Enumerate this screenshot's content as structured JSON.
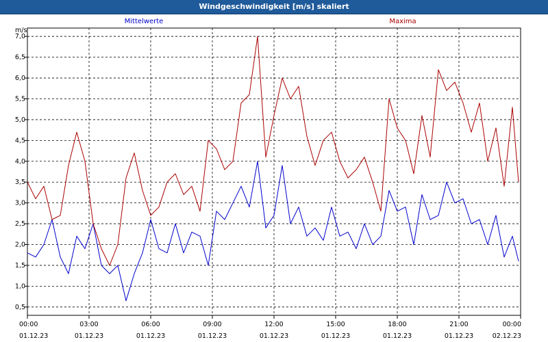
{
  "window": {
    "title": "Windgeschwindigkeit [m/s] skaliert"
  },
  "chart_data": {
    "type": "line",
    "title": "Windgeschwindigkeit [m/s] skaliert",
    "ylabel": "m/s",
    "ylim": [
      0.3,
      7.2
    ],
    "yticks": [
      "0,5",
      "1,0",
      "1,5",
      "2,0",
      "2,5",
      "3,0",
      "3,5",
      "4,0",
      "4,5",
      "5,0",
      "5,5",
      "6,0",
      "6,5",
      "7,0"
    ],
    "xlim": [
      0,
      24
    ],
    "xticks": [
      {
        "time": "00:00",
        "date": "01.12.23"
      },
      {
        "time": "03:00",
        "date": "01.12.23"
      },
      {
        "time": "06:00",
        "date": "01.12.23"
      },
      {
        "time": "09:00",
        "date": "01.12.23"
      },
      {
        "time": "12:00",
        "date": "01.12.23"
      },
      {
        "time": "15:00",
        "date": "01.12.23"
      },
      {
        "time": "18:00",
        "date": "01.12.23"
      },
      {
        "time": "21:00",
        "date": "01.12.23"
      },
      {
        "time": "00:00",
        "date": "02.12.23"
      }
    ],
    "grid": true,
    "series": [
      {
        "name": "Mittelwerte",
        "color": "#0000cc",
        "x": [
          0,
          0.4,
          0.8,
          1.2,
          1.6,
          2.0,
          2.4,
          2.8,
          3.2,
          3.6,
          4.0,
          4.4,
          4.8,
          5.2,
          5.6,
          6.0,
          6.4,
          6.8,
          7.2,
          7.6,
          8.0,
          8.4,
          8.8,
          9.2,
          9.6,
          10.0,
          10.4,
          10.8,
          11.2,
          11.6,
          12.0,
          12.4,
          12.8,
          13.2,
          13.6,
          14.0,
          14.4,
          14.8,
          15.2,
          15.6,
          16.0,
          16.4,
          16.8,
          17.2,
          17.6,
          18.0,
          18.4,
          18.8,
          19.2,
          19.6,
          20.0,
          20.4,
          20.8,
          21.2,
          21.6,
          22.0,
          22.4,
          22.8,
          23.2,
          23.6,
          23.9
        ],
        "values": [
          1.8,
          1.7,
          2.0,
          2.6,
          1.7,
          1.3,
          2.2,
          1.9,
          2.5,
          1.5,
          1.3,
          1.5,
          0.65,
          1.3,
          1.8,
          2.6,
          1.9,
          1.8,
          2.5,
          1.8,
          2.3,
          2.2,
          1.5,
          2.8,
          2.6,
          3.0,
          3.4,
          2.9,
          4.0,
          2.4,
          2.7,
          3.9,
          2.5,
          2.9,
          2.2,
          2.4,
          2.1,
          2.9,
          2.2,
          2.3,
          1.9,
          2.5,
          2.0,
          2.2,
          3.3,
          2.8,
          2.9,
          2.0,
          3.2,
          2.6,
          2.7,
          3.5,
          3.0,
          3.1,
          2.5,
          2.6,
          2.0,
          2.7,
          1.7,
          2.2,
          1.6
        ]
      },
      {
        "name": "Maxima",
        "color": "#aa0000",
        "x": [
          0,
          0.4,
          0.8,
          1.2,
          1.6,
          2.0,
          2.4,
          2.8,
          3.2,
          3.6,
          4.0,
          4.4,
          4.8,
          5.2,
          5.6,
          6.0,
          6.4,
          6.8,
          7.2,
          7.6,
          8.0,
          8.4,
          8.8,
          9.2,
          9.6,
          10.0,
          10.4,
          10.8,
          11.2,
          11.6,
          12.0,
          12.4,
          12.8,
          13.2,
          13.6,
          14.0,
          14.4,
          14.8,
          15.2,
          15.6,
          16.0,
          16.4,
          16.8,
          17.2,
          17.6,
          18.0,
          18.4,
          18.8,
          19.2,
          19.6,
          20.0,
          20.4,
          20.8,
          21.2,
          21.6,
          22.0,
          22.4,
          22.8,
          23.2,
          23.6,
          23.9
        ],
        "values": [
          3.5,
          3.1,
          3.4,
          2.6,
          2.7,
          3.9,
          4.7,
          4.0,
          2.5,
          1.9,
          1.5,
          2.0,
          3.6,
          4.2,
          3.3,
          2.7,
          2.9,
          3.5,
          3.7,
          3.2,
          3.4,
          2.8,
          4.5,
          4.3,
          3.8,
          4.0,
          5.4,
          5.6,
          7.0,
          4.1,
          5.1,
          6.0,
          5.5,
          5.8,
          4.6,
          3.9,
          4.5,
          4.7,
          4.0,
          3.6,
          3.8,
          4.1,
          3.5,
          2.8,
          5.5,
          4.8,
          4.5,
          3.7,
          5.1,
          4.1,
          6.2,
          5.7,
          5.9,
          5.4,
          4.7,
          5.4,
          4.0,
          4.8,
          3.4,
          5.3,
          3.5
        ]
      }
    ]
  }
}
